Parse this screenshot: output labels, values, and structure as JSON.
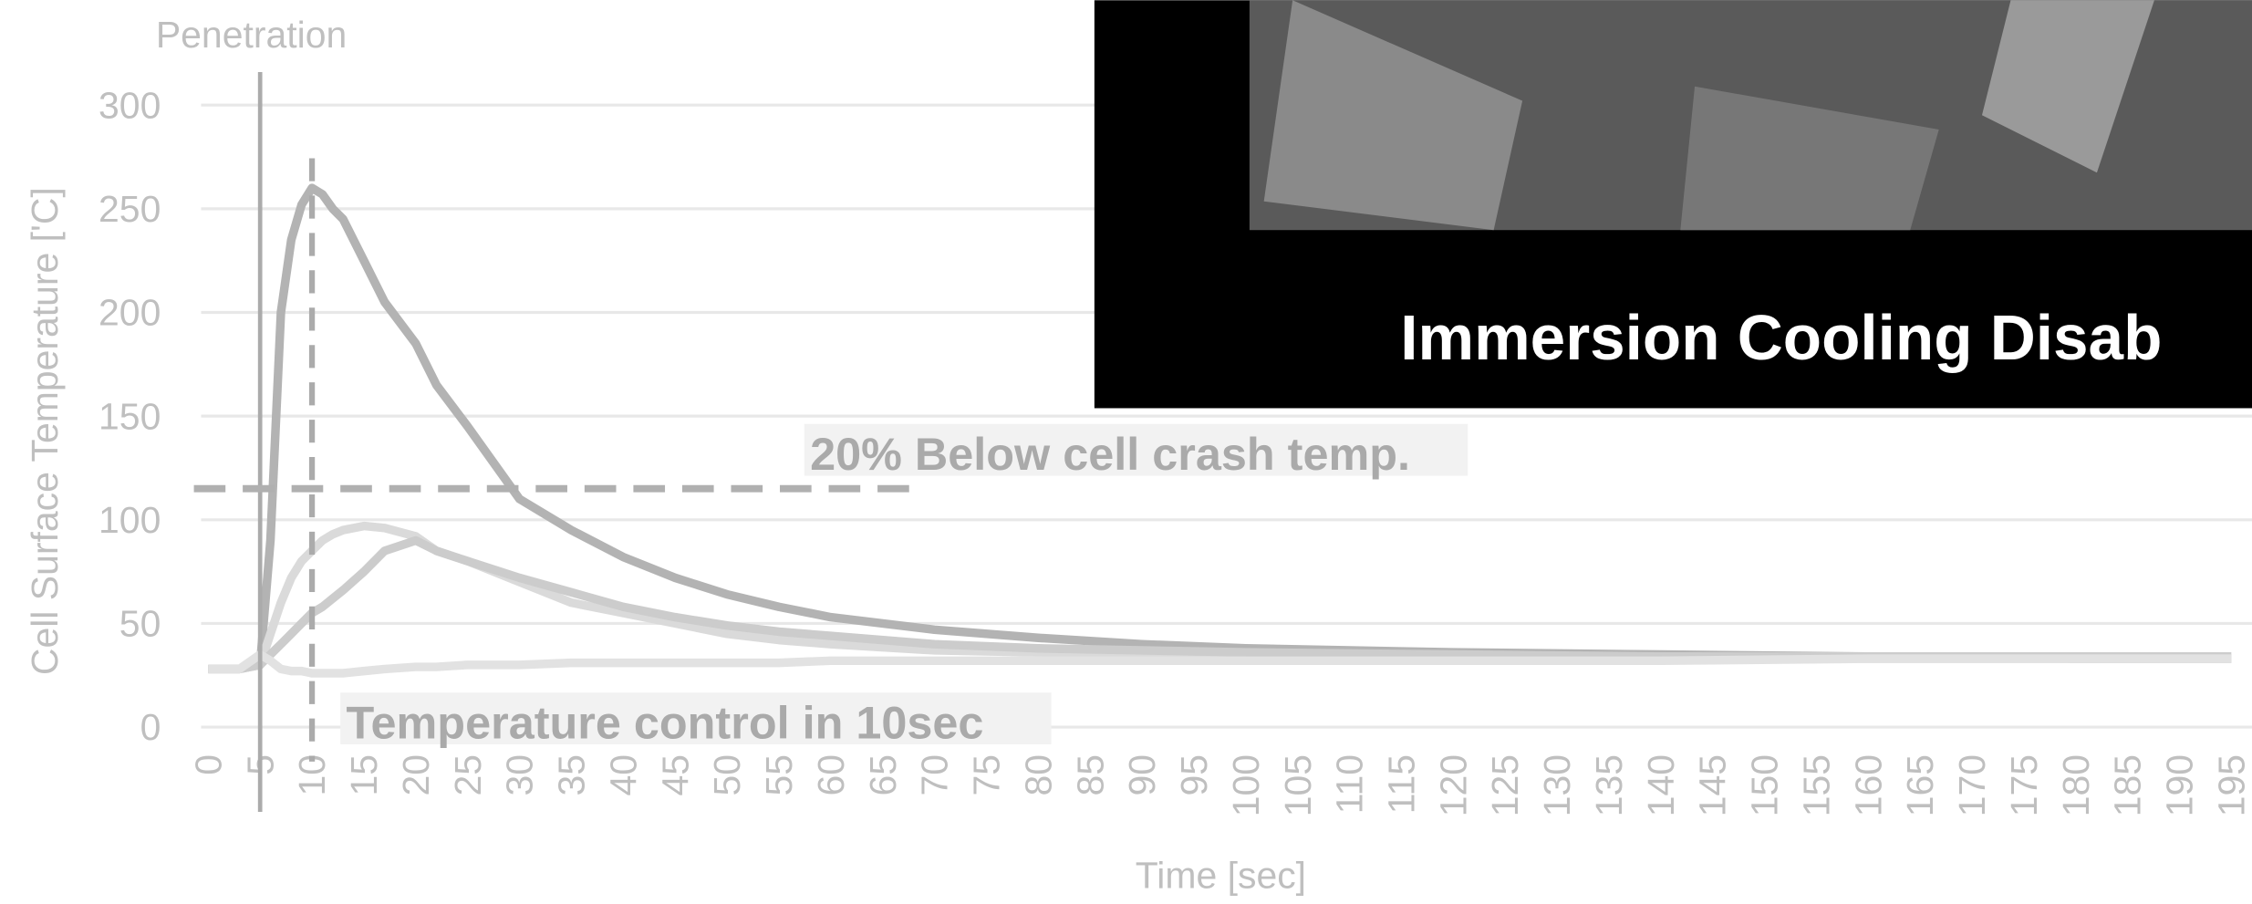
{
  "chart_data": {
    "type": "line",
    "x_label": "Time [sec]",
    "y_label": "Cell Surface Temperature ['C]",
    "x": [
      0,
      3,
      5,
      6,
      7,
      8,
      9,
      10,
      11,
      12,
      13,
      15,
      17,
      20,
      22,
      25,
      30,
      35,
      40,
      45,
      50,
      55,
      60,
      70,
      80,
      90,
      100,
      120,
      140,
      160,
      180,
      195
    ],
    "series": [
      {
        "color": "#b3b3b3",
        "values": [
          28,
          28,
          30,
          90,
          200,
          235,
          252,
          260,
          257,
          250,
          245,
          225,
          205,
          185,
          165,
          145,
          110,
          95,
          82,
          72,
          64,
          58,
          53,
          47,
          43,
          40,
          38,
          36,
          35,
          34,
          33,
          33
        ]
      },
      {
        "color": "#dadada",
        "values": [
          28,
          28,
          30,
          45,
          60,
          72,
          80,
          85,
          90,
          93,
          95,
          97,
          96,
          92,
          85,
          80,
          70,
          60,
          55,
          50,
          45,
          42,
          40,
          37,
          36,
          35,
          34,
          34,
          33,
          33,
          33,
          33
        ]
      },
      {
        "color": "#cccccc",
        "values": [
          28,
          28,
          30,
          35,
          40,
          45,
          50,
          55,
          58,
          62,
          66,
          75,
          85,
          90,
          85,
          80,
          72,
          65,
          58,
          53,
          49,
          46,
          44,
          40,
          38,
          37,
          36,
          35,
          34,
          34,
          34,
          34
        ]
      },
      {
        "color": "#e2e2e2",
        "values": [
          28,
          28,
          35,
          32,
          28,
          27,
          27,
          26,
          26,
          26,
          26,
          27,
          28,
          29,
          29,
          30,
          30,
          31,
          31,
          31,
          31,
          31,
          32,
          32,
          32,
          32,
          32,
          32,
          32,
          33,
          33,
          33
        ]
      }
    ],
    "xlim": [
      0,
      197
    ],
    "ylim": [
      0,
      300
    ],
    "xticks": [
      0,
      5,
      10,
      15,
      20,
      25,
      30,
      35,
      40,
      45,
      50,
      55,
      60,
      65,
      70,
      75,
      80,
      85,
      90,
      95,
      100,
      105,
      110,
      115,
      120,
      125,
      130,
      135,
      140,
      145,
      150,
      155,
      160,
      165,
      170,
      175,
      180,
      185,
      190,
      195
    ],
    "yticks": [
      0,
      50,
      100,
      150,
      200,
      250,
      300
    ],
    "grid": true,
    "reference_lines": [
      {
        "axis": "x",
        "value": 5,
        "label": "Penetration"
      },
      {
        "axis": "y",
        "value": 115,
        "label": "20% Below cell crash temp."
      },
      {
        "axis": "x",
        "value": 10,
        "label": "Temperature control in 10sec"
      }
    ]
  },
  "inset": {
    "caption": "Immersion Cooling Disab"
  }
}
